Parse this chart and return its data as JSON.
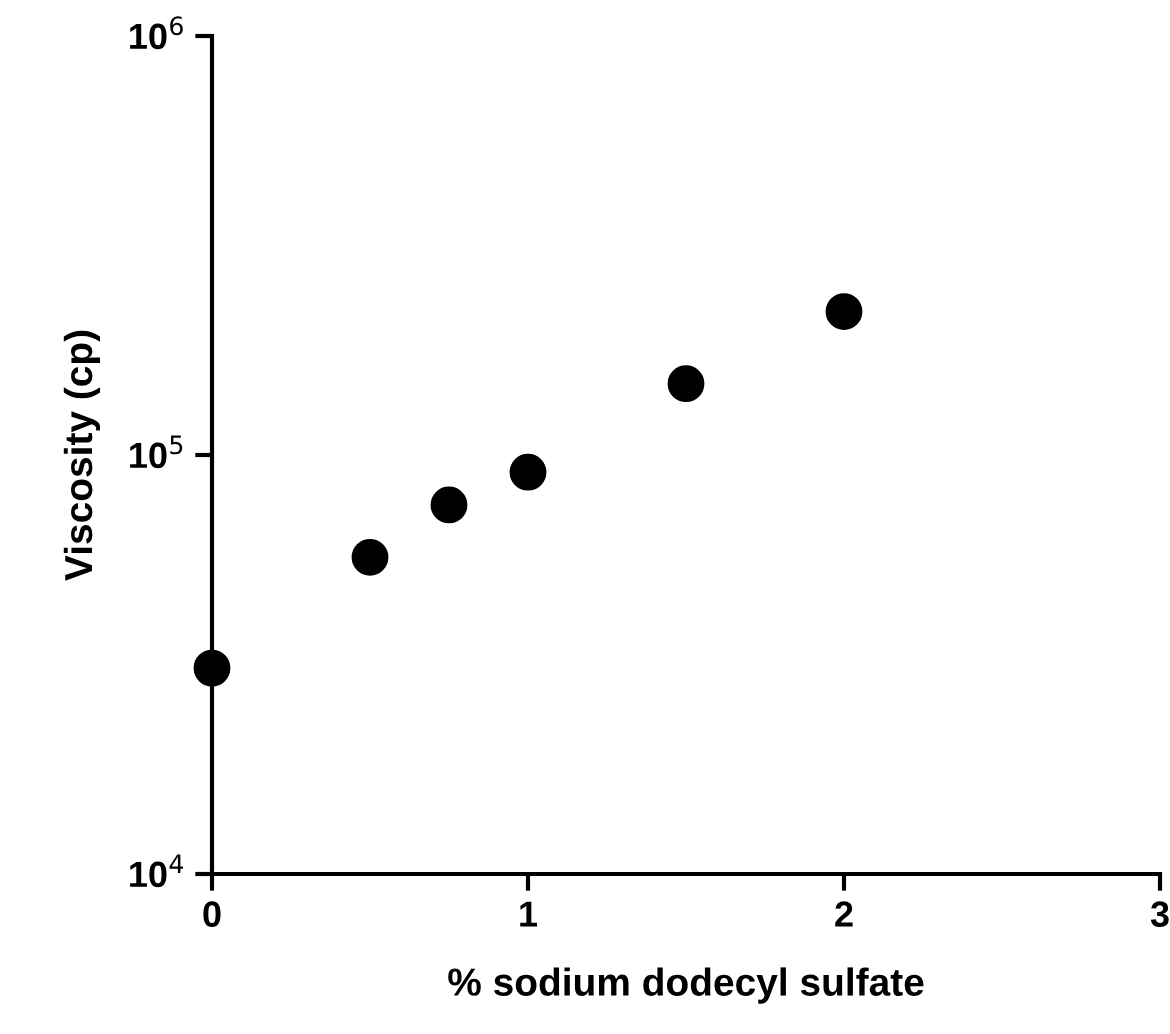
{
  "chart_data": {
    "type": "scatter",
    "xlabel": "% sodium dodecyl sulfate",
    "ylabel": "Viscosity (cp)",
    "x": [
      0,
      0.5,
      0.75,
      1,
      1.5,
      2
    ],
    "series": [
      {
        "color": "#000000",
        "values": [
          31000,
          57000,
          76000,
          91000,
          148000,
          220000
        ]
      }
    ],
    "log": "y",
    "xlim": [
      0,
      3
    ],
    "xticks": [
      0,
      1,
      2,
      3
    ],
    "ylim": [
      10000,
      1000000
    ],
    "yticks": [
      {
        "value": 10000,
        "label": "10$^{4}$"
      },
      {
        "value": 100000,
        "label": "10$^{5}$"
      },
      {
        "value": 1000000,
        "label": "10$^{6}$"
      }
    ],
    "marker": "circle",
    "grid": false,
    "legend": false
  }
}
